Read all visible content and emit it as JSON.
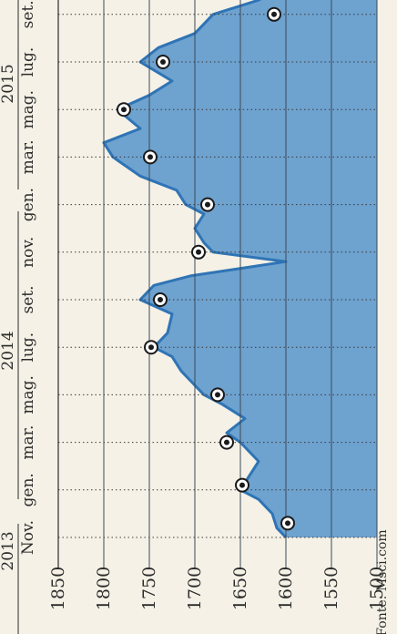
{
  "chart_data": {
    "type": "area",
    "orientation": "rotated-90-ccw",
    "source": "Fonte: Msci.com",
    "x_labels": [
      "Nov.",
      "gen.",
      "mar.",
      "mag.",
      "lug.",
      "set.",
      "nov.",
      "gen.",
      "mar.",
      "mag.",
      "lug.",
      "set."
    ],
    "year_labels": [
      "2013",
      "2014",
      "2015"
    ],
    "y_ticks": [
      1850,
      1800,
      1750,
      1700,
      1650,
      1600,
      1550,
      1500
    ],
    "ylim": [
      1500,
      1850
    ],
    "grid": true,
    "colors": {
      "fill": "#6ea2cf",
      "line": "#2f74b5",
      "background": "#f5f1e6",
      "grid": "#3a3a3a",
      "marker_outer": "#ffffff",
      "marker_inner": "#1a1a1a"
    },
    "series": [
      {
        "x": [
          0.0,
          0.2,
          0.5,
          0.8,
          1.0,
          1.3,
          1.6,
          2.0,
          2.2,
          2.5,
          2.8,
          3.0,
          3.2,
          3.5,
          3.8,
          4.0,
          4.3,
          4.7,
          5.0,
          5.3,
          5.5,
          5.8,
          6.0,
          6.2,
          6.5,
          6.8,
          7.0,
          7.3,
          7.6,
          8.0,
          8.3,
          8.6,
          9.0,
          9.3,
          9.6,
          10.0,
          10.3,
          10.6,
          11.0,
          11.3,
          11.6,
          11.8
        ],
        "values": [
          1600,
          1610,
          1615,
          1630,
          1650,
          1640,
          1630,
          1650,
          1665,
          1645,
          1670,
          1690,
          1700,
          1715,
          1725,
          1745,
          1730,
          1725,
          1760,
          1745,
          1705,
          1600,
          1680,
          1690,
          1700,
          1690,
          1710,
          1720,
          1760,
          1790,
          1800,
          1760,
          1785,
          1750,
          1725,
          1760,
          1740,
          1700,
          1680,
          1630,
          1600,
          1580
        ]
      }
    ],
    "markers": [
      {
        "x": 0.3,
        "value": 1598
      },
      {
        "x": 1.1,
        "value": 1648
      },
      {
        "x": 2.0,
        "value": 1665
      },
      {
        "x": 3.0,
        "value": 1675
      },
      {
        "x": 4.0,
        "value": 1748
      },
      {
        "x": 5.0,
        "value": 1738
      },
      {
        "x": 6.0,
        "value": 1696
      },
      {
        "x": 7.0,
        "value": 1686
      },
      {
        "x": 8.0,
        "value": 1749
      },
      {
        "x": 9.0,
        "value": 1778
      },
      {
        "x": 10.0,
        "value": 1735
      },
      {
        "x": 11.0,
        "value": 1613
      }
    ]
  }
}
